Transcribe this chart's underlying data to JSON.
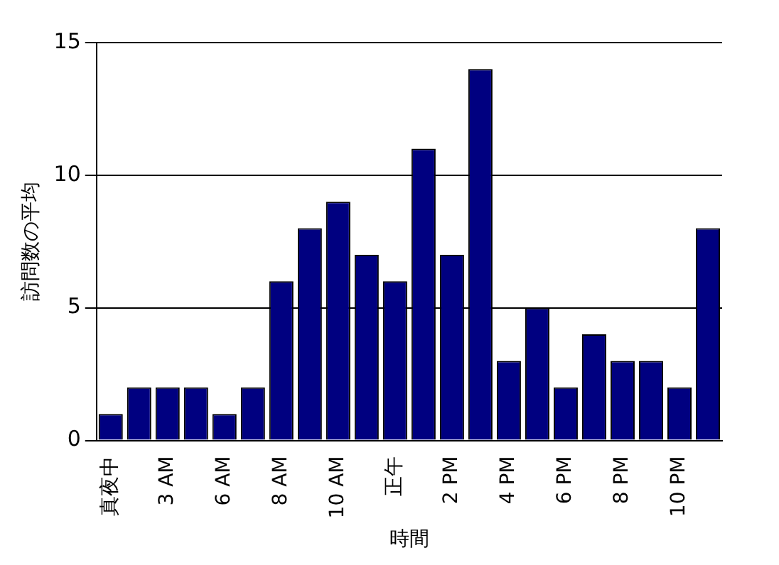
{
  "chart_data": {
    "type": "bar",
    "xlabel": "時間",
    "ylabel": "訪問数の平均",
    "categories": [
      "真夜中",
      null,
      "3 AM",
      null,
      "6 AM",
      null,
      "8 AM",
      null,
      "10 AM",
      null,
      "正午",
      null,
      "2 PM",
      null,
      "4 PM",
      null,
      "6 PM",
      null,
      "8 PM",
      null,
      "10 PM",
      null
    ],
    "values": [
      1,
      2,
      2,
      2,
      1,
      2,
      6,
      8,
      9,
      7,
      6,
      11,
      7,
      14,
      3,
      5,
      2,
      4,
      3,
      3,
      2,
      8
    ],
    "color": "#000080",
    "ylim": [
      0,
      15
    ],
    "yticks": [
      0,
      5,
      10,
      15
    ],
    "grid": "y",
    "legend": false
  }
}
